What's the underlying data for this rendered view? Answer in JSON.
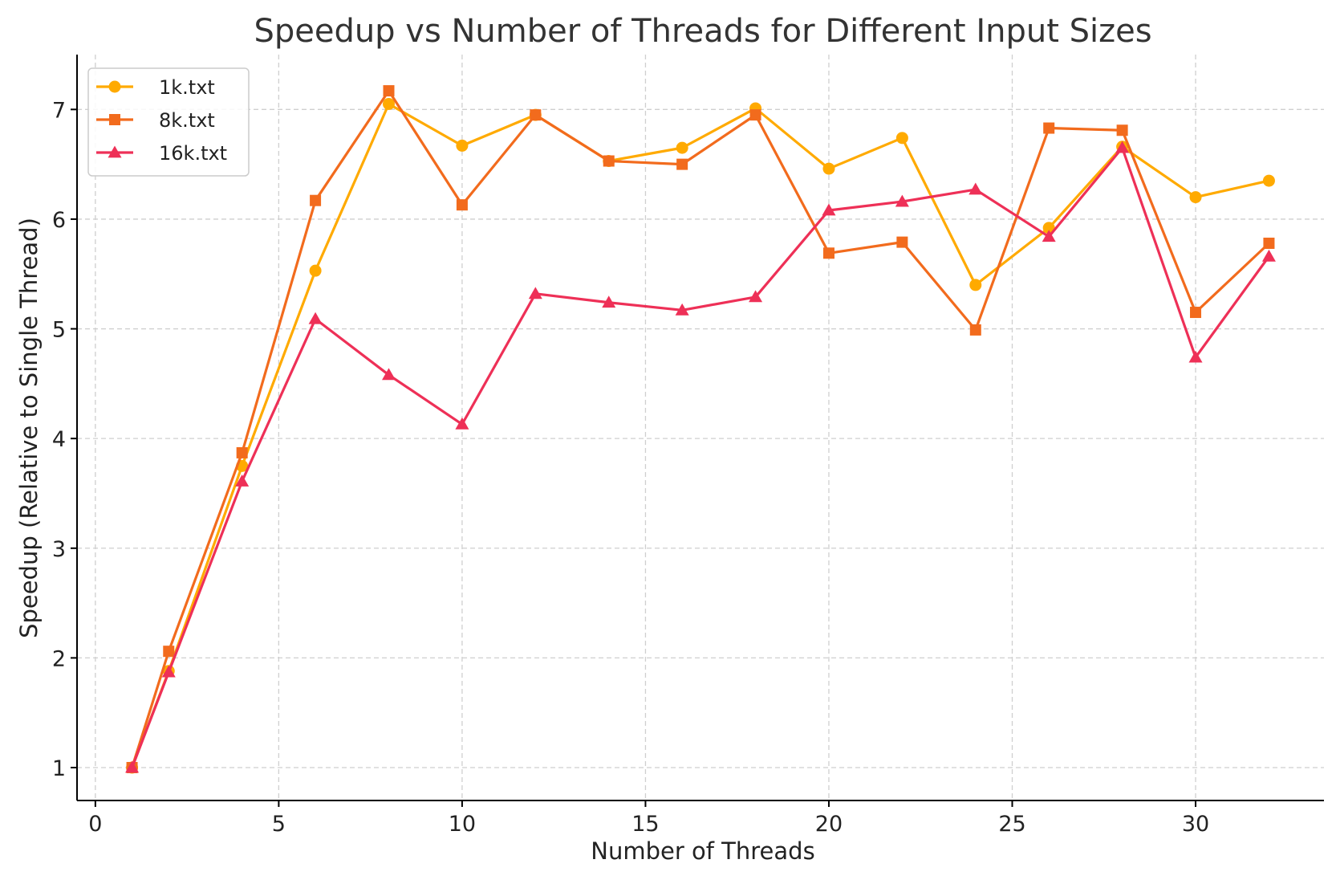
{
  "chart_data": {
    "type": "line",
    "title": "Speedup vs Number of Threads for Different Input Sizes",
    "xlabel": "Number of Threads",
    "ylabel": "Speedup (Relative to Single Thread)",
    "x": [
      1,
      2,
      4,
      6,
      8,
      10,
      12,
      14,
      16,
      18,
      20,
      22,
      24,
      26,
      28,
      30,
      32
    ],
    "xlim": [
      -0.5,
      33.5
    ],
    "ylim": [
      0.7,
      7.5
    ],
    "xticks": [
      0,
      5,
      10,
      15,
      20,
      25,
      30
    ],
    "yticks": [
      1,
      2,
      3,
      4,
      5,
      6,
      7
    ],
    "grid": true,
    "legend_position": "top-left",
    "series": [
      {
        "name": "1k.txt",
        "color": "#FFAA00",
        "marker": "circle",
        "values": [
          1.0,
          1.88,
          3.75,
          5.53,
          7.05,
          6.67,
          6.95,
          6.53,
          6.65,
          7.01,
          6.46,
          6.74,
          5.4,
          5.92,
          6.66,
          6.2,
          6.35
        ]
      },
      {
        "name": "8k.txt",
        "color": "#F26B1D",
        "marker": "square",
        "values": [
          1.0,
          2.06,
          3.87,
          6.17,
          7.17,
          6.13,
          6.95,
          6.53,
          6.5,
          6.95,
          5.69,
          5.79,
          4.99,
          6.83,
          6.81,
          5.15,
          5.78
        ]
      },
      {
        "name": "16k.txt",
        "color": "#EE3057",
        "marker": "triangle",
        "values": [
          1.0,
          1.87,
          3.61,
          5.09,
          4.58,
          4.13,
          5.32,
          5.24,
          5.17,
          5.29,
          6.08,
          6.16,
          6.27,
          5.84,
          6.65,
          4.74,
          5.66
        ]
      }
    ]
  }
}
